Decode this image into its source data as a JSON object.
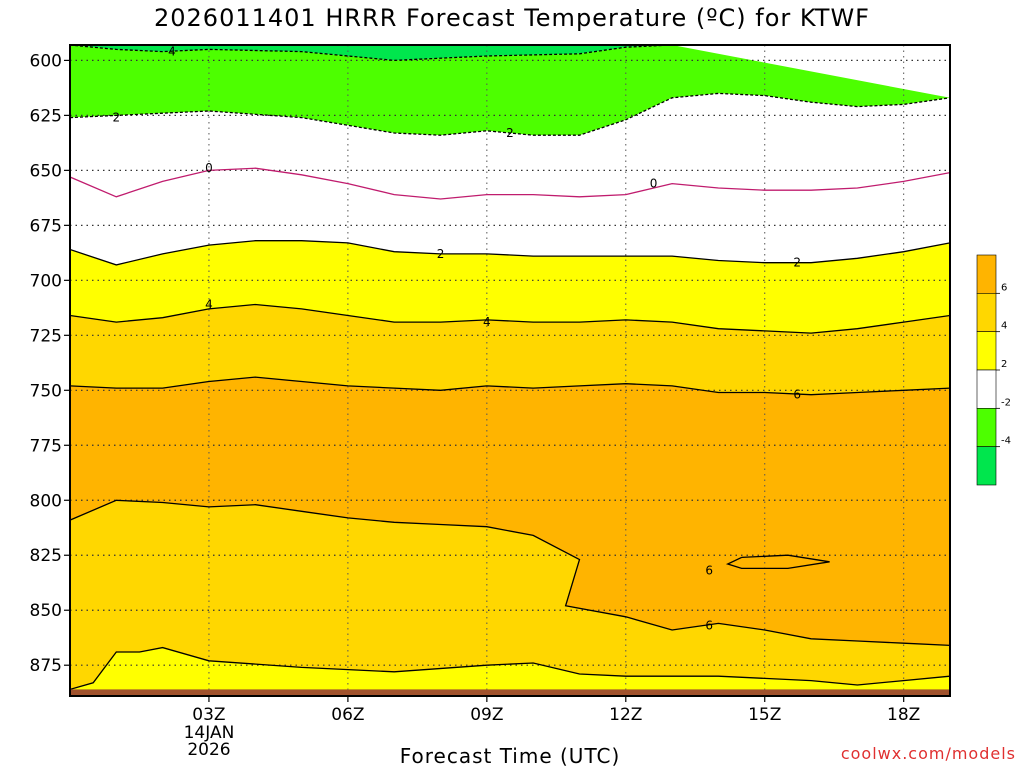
{
  "chart_data": {
    "type": "heatmap",
    "title": "2026011401 HRRR Forecast Temperature (ºC) for KTWF",
    "xlabel": "Forecast Time (UTC)",
    "ylabel": "",
    "x_ticks": [
      "03Z",
      "06Z",
      "09Z",
      "12Z",
      "15Z",
      "18Z"
    ],
    "x_date_label": [
      "14JAN",
      "2026"
    ],
    "y_ticks": [
      600,
      625,
      650,
      675,
      700,
      725,
      750,
      775,
      800,
      825,
      850,
      875
    ],
    "x_range_hours": [
      0,
      19
    ],
    "y_range_hpa": [
      593,
      889
    ],
    "grid": true,
    "legend_position": "right",
    "colorbar": {
      "labels": [
        "6",
        "4",
        "2",
        "-2",
        "-4"
      ],
      "bins": [
        {
          "min": 6,
          "max": 8,
          "color": "#ffb400"
        },
        {
          "min": 4,
          "max": 6,
          "color": "#ffd700"
        },
        {
          "min": 2,
          "max": 4,
          "color": "#ffff00"
        },
        {
          "min": -2,
          "max": 2,
          "color": "#ffffff"
        },
        {
          "min": -4,
          "max": -2,
          "color": "#4dff00"
        },
        {
          "min": -6,
          "max": -4,
          "color": "#00e64d"
        }
      ]
    },
    "contours": [
      {
        "level": -4,
        "color": "#000000",
        "dashed": true,
        "points": [
          [
            0,
            593
          ],
          [
            1,
            595
          ],
          [
            2,
            596
          ],
          [
            3,
            595
          ],
          [
            5,
            596
          ],
          [
            7,
            600
          ],
          [
            9,
            598
          ],
          [
            11,
            597
          ],
          [
            12,
            594
          ],
          [
            13,
            593
          ]
        ]
      },
      {
        "level": -2,
        "color": "#000000",
        "dashed": true,
        "points": [
          [
            0,
            626
          ],
          [
            1,
            625
          ],
          [
            3,
            623
          ],
          [
            5,
            626
          ],
          [
            7,
            633
          ],
          [
            8,
            634
          ],
          [
            9,
            632
          ],
          [
            10,
            634
          ],
          [
            11,
            634
          ],
          [
            12,
            627
          ],
          [
            13,
            617
          ],
          [
            14,
            615
          ],
          [
            15,
            616
          ],
          [
            16,
            619
          ],
          [
            17,
            621
          ],
          [
            18,
            620
          ],
          [
            19,
            617
          ]
        ]
      },
      {
        "level": 0,
        "color": "#c01c6e",
        "dashed": false,
        "points": [
          [
            0,
            653
          ],
          [
            1,
            662
          ],
          [
            2,
            655
          ],
          [
            3,
            650
          ],
          [
            4,
            649
          ],
          [
            5,
            652
          ],
          [
            6,
            656
          ],
          [
            7,
            661
          ],
          [
            8,
            663
          ],
          [
            9,
            661
          ],
          [
            10,
            661
          ],
          [
            11,
            662
          ],
          [
            12,
            661
          ],
          [
            13,
            656
          ],
          [
            14,
            658
          ],
          [
            15,
            659
          ],
          [
            16,
            659
          ],
          [
            17,
            658
          ],
          [
            18,
            655
          ],
          [
            19,
            651
          ]
        ]
      },
      {
        "level": 2,
        "color": "#000000",
        "dashed": false,
        "points": [
          [
            0,
            686
          ],
          [
            1,
            693
          ],
          [
            2,
            688
          ],
          [
            3,
            684
          ],
          [
            4,
            682
          ],
          [
            5,
            682
          ],
          [
            6,
            683
          ],
          [
            7,
            687
          ],
          [
            8,
            688
          ],
          [
            9,
            688
          ],
          [
            10,
            689
          ],
          [
            11,
            689
          ],
          [
            12,
            689
          ],
          [
            13,
            689
          ],
          [
            14,
            691
          ],
          [
            15,
            692
          ],
          [
            16,
            692
          ],
          [
            17,
            690
          ],
          [
            18,
            687
          ],
          [
            19,
            683
          ]
        ]
      },
      {
        "level": 4,
        "color": "#000000",
        "dashed": false,
        "points": [
          [
            0,
            716
          ],
          [
            1,
            719
          ],
          [
            2,
            717
          ],
          [
            3,
            713
          ],
          [
            4,
            711
          ],
          [
            5,
            713
          ],
          [
            6,
            716
          ],
          [
            7,
            719
          ],
          [
            8,
            719
          ],
          [
            9,
            718
          ],
          [
            10,
            719
          ],
          [
            11,
            719
          ],
          [
            12,
            718
          ],
          [
            13,
            719
          ],
          [
            14,
            722
          ],
          [
            15,
            723
          ],
          [
            16,
            724
          ],
          [
            17,
            722
          ],
          [
            18,
            719
          ],
          [
            19,
            716
          ]
        ]
      },
      {
        "level": 6,
        "color": "#000000",
        "dashed": false,
        "points": [
          [
            0,
            748
          ],
          [
            1,
            749
          ],
          [
            2,
            749
          ],
          [
            3,
            746
          ],
          [
            4,
            744
          ],
          [
            5,
            746
          ],
          [
            6,
            748
          ],
          [
            7,
            749
          ],
          [
            8,
            750
          ],
          [
            9,
            748
          ],
          [
            10,
            749
          ],
          [
            11,
            748
          ],
          [
            12,
            747
          ],
          [
            13,
            748
          ],
          [
            14,
            751
          ],
          [
            15,
            751
          ],
          [
            16,
            752
          ],
          [
            17,
            751
          ],
          [
            18,
            750
          ],
          [
            19,
            749
          ]
        ]
      },
      {
        "level": 6,
        "color": "#000000",
        "dashed": false,
        "points": [
          [
            0,
            809
          ],
          [
            1,
            800
          ],
          [
            2,
            801
          ],
          [
            3,
            803
          ],
          [
            4,
            802
          ],
          [
            5,
            805
          ],
          [
            6,
            808
          ],
          [
            7,
            810
          ],
          [
            8,
            811
          ],
          [
            9,
            812
          ],
          [
            10,
            816
          ],
          [
            11,
            827
          ],
          [
            10.7,
            848
          ],
          [
            12,
            853
          ],
          [
            13,
            859
          ],
          [
            14,
            856
          ],
          [
            15,
            859
          ],
          [
            16,
            863
          ],
          [
            17,
            864
          ],
          [
            18,
            865
          ],
          [
            19,
            866
          ]
        ]
      },
      {
        "level": 6,
        "color": "#000000",
        "dashed": false,
        "points": [
          [
            14.5,
            826
          ],
          [
            15.5,
            825
          ],
          [
            16.4,
            828
          ],
          [
            15.5,
            831
          ],
          [
            14.5,
            831
          ],
          [
            14.2,
            829
          ],
          [
            14.5,
            826
          ]
        ]
      },
      {
        "level": 4,
        "color": "#000000",
        "dashed": false,
        "points": [
          [
            0,
            886
          ],
          [
            0.5,
            883
          ],
          [
            1,
            869
          ],
          [
            1.5,
            869
          ],
          [
            2,
            867
          ],
          [
            3,
            873
          ],
          [
            5,
            876
          ],
          [
            7,
            878
          ],
          [
            9,
            875
          ],
          [
            10,
            874
          ],
          [
            11,
            879
          ],
          [
            12,
            880
          ],
          [
            14,
            880
          ],
          [
            16,
            882
          ],
          [
            17,
            884
          ],
          [
            19,
            880
          ]
        ]
      }
    ],
    "contour_labels": [
      {
        "text": "4",
        "x": 2.2,
        "y": 596
      },
      {
        "text": "2",
        "x": 1.0,
        "y": 626
      },
      {
        "text": "2",
        "x": 9.5,
        "y": 633
      },
      {
        "text": "0",
        "x": 3.0,
        "y": 649
      },
      {
        "text": "0",
        "x": 12.6,
        "y": 656
      },
      {
        "text": "2",
        "x": 8.0,
        "y": 688
      },
      {
        "text": "2",
        "x": 15.7,
        "y": 692
      },
      {
        "text": "4",
        "x": 3.0,
        "y": 711
      },
      {
        "text": "4",
        "x": 9.0,
        "y": 719
      },
      {
        "text": "6",
        "x": 15.7,
        "y": 752
      },
      {
        "text": "6",
        "x": 13.8,
        "y": 832
      },
      {
        "text": "6",
        "x": 13.8,
        "y": 857
      }
    ],
    "ground": {
      "color": "#a0522d",
      "top_hpa": 886
    }
  },
  "footer": {
    "xlabel": "Forecast Time (UTC)",
    "credit": "coolwx.com/models"
  }
}
